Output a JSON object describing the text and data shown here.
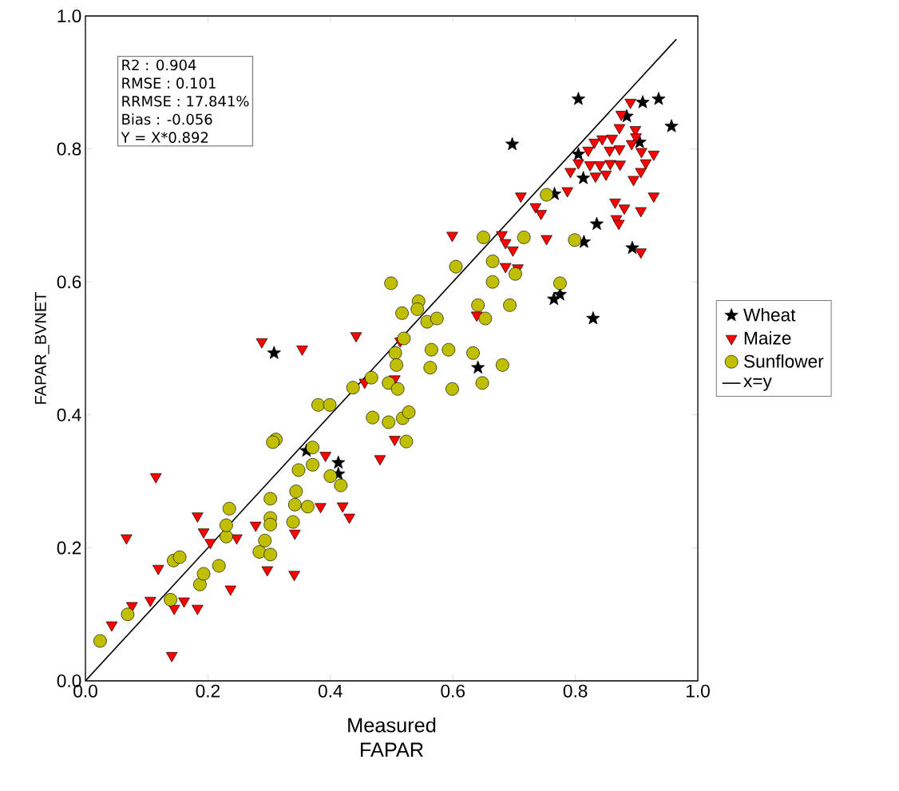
{
  "chart_data": {
    "type": "scatter",
    "xlabel": "Measured FAPAR",
    "ylabel": "FAPAR_BVNET",
    "xlim": [
      0,
      1.0
    ],
    "ylim": [
      0,
      1.0
    ],
    "xticks": [
      {
        "value": 0,
        "label": "0.0"
      },
      0.2,
      0.4,
      0.6,
      0.8,
      {
        "value": 1.0,
        "label": "1.0"
      }
    ],
    "yticks": [
      {
        "value": 0,
        "label": "0.0"
      },
      0.2,
      0.4,
      0.6,
      0.8,
      {
        "value": 1.0,
        "label": "1.0"
      }
    ],
    "legend": "right",
    "annotations": [
      "R2 : 0.904",
      "RMSE : 0.101",
      "RRMSE : 17.841%",
      "Bias : -0.056",
      "Y = X*0.892"
    ],
    "series": [
      {
        "name": "Wheat",
        "marker": "star",
        "color": "#000000",
        "x": [
          0.805,
          0.91,
          0.936,
          0.957,
          0.884,
          0.905,
          0.805,
          0.813,
          0.766,
          0.835,
          0.814,
          0.893,
          0.765,
          0.775,
          0.829,
          0.697,
          0.641,
          0.308,
          0.361,
          0.413,
          0.413
        ],
        "values": [
          0.875,
          0.87,
          0.875,
          0.834,
          0.849,
          0.81,
          0.792,
          0.756,
          0.732,
          0.687,
          0.66,
          0.651,
          0.574,
          0.581,
          0.545,
          0.807,
          0.471,
          0.493,
          0.346,
          0.328,
          0.311
        ]
      },
      {
        "name": "Maize",
        "marker": "triangle",
        "color": "#ff0000",
        "x": [
          0.288,
          0.354,
          0.442,
          0.115,
          0.067,
          0.183,
          0.193,
          0.204,
          0.247,
          0.119,
          0.106,
          0.076,
          0.043,
          0.145,
          0.161,
          0.183,
          0.141,
          0.237,
          0.297,
          0.341,
          0.278,
          0.342,
          0.384,
          0.42,
          0.431,
          0.392,
          0.481,
          0.456,
          0.599,
          0.68,
          0.686,
          0.698,
          0.753,
          0.686,
          0.706,
          0.639,
          0.514,
          0.505,
          0.505,
          0.89,
          0.875,
          0.872,
          0.898,
          0.899,
          0.86,
          0.844,
          0.831,
          0.892,
          0.821,
          0.856,
          0.872,
          0.908,
          0.928,
          0.805,
          0.824,
          0.84,
          0.857,
          0.873,
          0.915,
          0.792,
          0.833,
          0.85,
          0.907,
          0.895,
          0.787,
          0.711,
          0.735,
          0.744,
          0.928,
          0.865,
          0.88,
          0.907,
          0.867,
          0.871,
          0.907
        ],
        "values": [
          0.51,
          0.499,
          0.519,
          0.307,
          0.215,
          0.248,
          0.224,
          0.208,
          0.215,
          0.169,
          0.121,
          0.113,
          0.084,
          0.109,
          0.12,
          0.109,
          0.038,
          0.138,
          0.167,
          0.16,
          0.234,
          0.222,
          0.262,
          0.263,
          0.246,
          0.339,
          0.334,
          0.449,
          0.67,
          0.671,
          0.659,
          0.648,
          0.665,
          0.623,
          0.621,
          0.55,
          0.511,
          0.454,
          0.363,
          0.87,
          0.852,
          0.832,
          0.829,
          0.818,
          0.816,
          0.815,
          0.81,
          0.808,
          0.798,
          0.798,
          0.8,
          0.796,
          0.792,
          0.779,
          0.776,
          0.776,
          0.778,
          0.777,
          0.779,
          0.766,
          0.759,
          0.762,
          0.766,
          0.754,
          0.737,
          0.729,
          0.713,
          0.703,
          0.729,
          0.72,
          0.711,
          0.707,
          0.695,
          0.688,
          0.645
        ]
      },
      {
        "name": "Sunflower",
        "marker": "circle",
        "color": "#bfbf00",
        "x": [
          0.024,
          0.069,
          0.139,
          0.144,
          0.154,
          0.187,
          0.193,
          0.218,
          0.23,
          0.23,
          0.235,
          0.284,
          0.293,
          0.302,
          0.302,
          0.302,
          0.302,
          0.311,
          0.306,
          0.339,
          0.342,
          0.344,
          0.348,
          0.363,
          0.371,
          0.371,
          0.38,
          0.399,
          0.4,
          0.417,
          0.437,
          0.467,
          0.469,
          0.65,
          0.716,
          0.799,
          0.665,
          0.605,
          0.665,
          0.702,
          0.775,
          0.499,
          0.544,
          0.542,
          0.517,
          0.558,
          0.574,
          0.641,
          0.653,
          0.693,
          0.52,
          0.506,
          0.508,
          0.565,
          0.593,
          0.633,
          0.563,
          0.681,
          0.648,
          0.599,
          0.495,
          0.51,
          0.495,
          0.518,
          0.528,
          0.524,
          0.753
        ],
        "values": [
          0.06,
          0.1,
          0.122,
          0.181,
          0.186,
          0.145,
          0.161,
          0.173,
          0.217,
          0.234,
          0.259,
          0.194,
          0.211,
          0.19,
          0.245,
          0.235,
          0.274,
          0.363,
          0.359,
          0.239,
          0.265,
          0.285,
          0.317,
          0.262,
          0.325,
          0.351,
          0.415,
          0.415,
          0.308,
          0.294,
          0.441,
          0.456,
          0.396,
          0.667,
          0.667,
          0.663,
          0.631,
          0.623,
          0.6,
          0.612,
          0.598,
          0.598,
          0.571,
          0.559,
          0.553,
          0.54,
          0.545,
          0.565,
          0.545,
          0.565,
          0.515,
          0.493,
          0.475,
          0.498,
          0.498,
          0.493,
          0.471,
          0.475,
          0.448,
          0.439,
          0.448,
          0.439,
          0.389,
          0.395,
          0.404,
          0.36,
          0.731
        ]
      },
      {
        "name": "x=y",
        "type": "line",
        "marker": "none",
        "line_style": "solid",
        "color": "#000000",
        "x": [
          0,
          0.965
        ],
        "values": [
          0,
          0.965
        ]
      }
    ]
  }
}
